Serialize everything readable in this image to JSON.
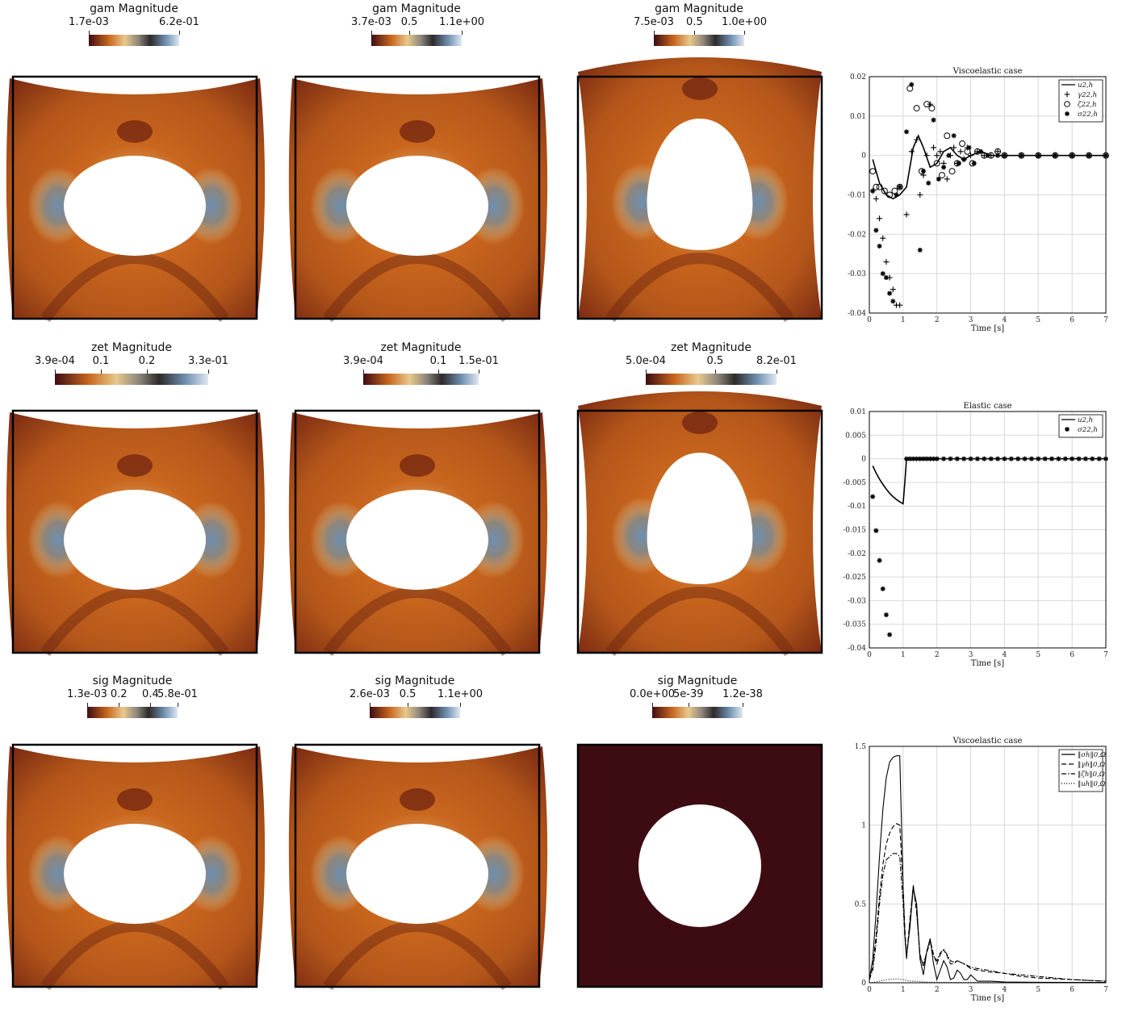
{
  "fields": [
    {
      "title": "gam Magnitude",
      "ticks": [
        "1.7e-03",
        "6.2e-01"
      ],
      "shape": "ellipse-wide",
      "deform": "top-sag"
    },
    {
      "title": "gam Magnitude",
      "ticks": [
        "3.7e-03",
        "0.5",
        "1.1e+00"
      ],
      "shape": "ellipse-wide",
      "deform": "top-sag"
    },
    {
      "title": "gam Magnitude",
      "ticks": [
        "7.5e-03",
        "0.5",
        "1.0e+00"
      ],
      "shape": "egg-tall",
      "deform": "top-bulge"
    },
    {
      "title": "zet Magnitude",
      "ticks": [
        "3.9e-04",
        "0.1",
        "0.2",
        "3.3e-01"
      ],
      "shape": "ellipse-wide",
      "deform": "top-sag"
    },
    {
      "title": "zet Magnitude",
      "ticks": [
        "3.9e-04",
        "0.1",
        "1.5e-01"
      ],
      "shape": "ellipse-wide",
      "deform": "top-sag"
    },
    {
      "title": "zet Magnitude",
      "ticks": [
        "5.0e-04",
        "0.5",
        "8.2e-01"
      ],
      "shape": "egg-tall",
      "deform": "top-bulge"
    },
    {
      "title": "sig Magnitude",
      "ticks": [
        "1.3e-03",
        "0.2",
        "0.4",
        "5.8e-01"
      ],
      "shape": "ellipse-wide",
      "deform": "top-sag"
    },
    {
      "title": "sig Magnitude",
      "ticks": [
        "2.6e-03",
        "0.5",
        "1.1e+00"
      ],
      "shape": "ellipse-wide",
      "deform": "top-sag"
    },
    {
      "title": "sig Magnitude",
      "ticks": [
        "0.0e+00",
        "5e-39",
        "1.2e-38"
      ],
      "shape": "circle",
      "deform": "none"
    }
  ],
  "colors": {
    "dark": "#3d0c12",
    "orange": "#c9661e",
    "light": "#e8c98c",
    "grey": "#8c857c",
    "blue": "#6e8fb0",
    "pale": "#dfe8f2"
  },
  "chart_data": [
    {
      "type": "scatter",
      "title": "Viscoelastic case",
      "xlabel": "Time [s]",
      "xlim": [
        0,
        7
      ],
      "ylim": [
        -0.04,
        0.02
      ],
      "xticks": [
        "0",
        "1",
        "2",
        "3",
        "4",
        "5",
        "6",
        "7"
      ],
      "yticks": [
        "0.02",
        "0.01",
        "0",
        "-0.01",
        "-0.02",
        "-0.03",
        "-0.04"
      ],
      "grid": true,
      "legend": "top-right",
      "series": [
        {
          "name": "u2,h",
          "style": "line",
          "x": [
            0.1,
            0.3,
            0.5,
            0.7,
            0.9,
            1.1,
            1.3,
            1.45,
            1.6,
            1.8,
            2.0,
            2.2,
            2.4,
            2.6,
            2.8,
            3.0,
            3.3,
            3.6,
            4.0,
            5.0,
            6.0,
            7.0
          ],
          "y": [
            -0.001,
            -0.007,
            -0.01,
            -0.011,
            -0.01,
            -0.008,
            0.002,
            0.005,
            0.002,
            -0.003,
            -0.002,
            0.001,
            0.002,
            0.0,
            -0.001,
            0.0,
            0.001,
            0.0,
            0.0,
            0.0,
            0.0,
            0.0
          ]
        },
        {
          "name": "γ22,h",
          "style": "plus",
          "x": [
            0.1,
            0.2,
            0.3,
            0.4,
            0.5,
            0.6,
            0.7,
            0.8,
            0.9,
            1.1,
            1.25,
            1.4,
            1.5,
            1.6,
            1.7,
            1.8,
            1.9,
            2.0,
            2.1,
            2.2,
            2.3,
            2.4,
            2.5,
            2.6,
            2.7,
            2.8,
            2.9,
            3.0,
            3.2,
            3.4,
            3.6,
            3.8,
            4.0,
            4.5,
            5.0,
            5.5,
            6.0,
            6.5,
            7.0
          ],
          "y": [
            -0.009,
            -0.011,
            -0.016,
            -0.021,
            -0.027,
            -0.031,
            -0.034,
            -0.038,
            -0.038,
            -0.015,
            0.001,
            0.004,
            -0.01,
            -0.005,
            0.0,
            0.013,
            0.002,
            0.0,
            0.001,
            -0.002,
            -0.006,
            0.0,
            0.002,
            -0.002,
            0.001,
            -0.001,
            0.002,
            0.0,
            0.001,
            0.0,
            0.0,
            0.001,
            0.0,
            0.0,
            0.0,
            0.0,
            0.0,
            0.0,
            0.0
          ]
        },
        {
          "name": "ζ22,h",
          "style": "circle",
          "x": [
            0.1,
            0.2,
            0.3,
            0.45,
            0.6,
            0.75,
            0.9,
            1.2,
            1.4,
            1.55,
            1.7,
            1.85,
            2.0,
            2.15,
            2.3,
            2.45,
            2.6,
            2.75,
            2.9,
            3.05,
            3.2,
            3.4,
            3.6,
            3.8,
            4.0,
            4.5,
            5.0,
            5.5,
            6.0,
            6.5,
            7.0
          ],
          "y": [
            -0.004,
            -0.008,
            -0.008,
            -0.009,
            -0.01,
            -0.009,
            -0.008,
            0.017,
            0.012,
            -0.004,
            0.013,
            0.012,
            -0.002,
            -0.005,
            0.005,
            -0.004,
            -0.002,
            0.003,
            0.001,
            -0.002,
            0.001,
            0.0,
            0.0,
            0.001,
            0.0,
            0.0,
            0.0,
            0.0,
            0.0,
            0.0,
            0.0
          ]
        },
        {
          "name": "σ22,h",
          "style": "star",
          "x": [
            0.1,
            0.2,
            0.3,
            0.4,
            0.5,
            0.6,
            0.7,
            0.8,
            0.9,
            1.1,
            1.25,
            1.5,
            1.6,
            1.75,
            1.9,
            2.05,
            2.2,
            2.35,
            2.5,
            2.65,
            2.8,
            2.95,
            3.1,
            3.3,
            3.5,
            3.8,
            4.0,
            4.5,
            5.0,
            5.5,
            6.0,
            6.5,
            7.0
          ],
          "y": [
            -0.009,
            -0.019,
            -0.023,
            -0.03,
            -0.031,
            -0.035,
            -0.037,
            -0.01,
            -0.008,
            0.006,
            0.018,
            -0.024,
            -0.004,
            -0.007,
            0.009,
            -0.006,
            -0.003,
            0.0,
            0.005,
            -0.002,
            -0.001,
            0.002,
            -0.002,
            0.001,
            0.0,
            0.0,
            0.0,
            0.0,
            0.0,
            0.0,
            0.0,
            0.0,
            0.0
          ]
        }
      ]
    },
    {
      "type": "scatter",
      "title": "Elastic case",
      "xlabel": "Time [s]",
      "xlim": [
        0,
        7
      ],
      "ylim": [
        -0.04,
        0.01
      ],
      "xticks": [
        "0",
        "1",
        "2",
        "3",
        "4",
        "5",
        "6",
        "7"
      ],
      "yticks": [
        "0.01",
        "0.005",
        "0",
        "-0.005",
        "-0.01",
        "-0.015",
        "-0.02",
        "-0.025",
        "-0.03",
        "-0.035",
        "-0.04"
      ],
      "grid": true,
      "legend": "top-right",
      "series": [
        {
          "name": "u2,h",
          "style": "line",
          "x": [
            0.1,
            0.2,
            0.3,
            0.4,
            0.5,
            0.6,
            0.7,
            0.8,
            0.9,
            1.0,
            1.05,
            1.1,
            2.0,
            3.0,
            4.0,
            5.0,
            6.0,
            7.0
          ],
          "y": [
            -0.0015,
            -0.003,
            -0.0043,
            -0.0054,
            -0.0064,
            -0.0073,
            -0.008,
            -0.0086,
            -0.0091,
            -0.0095,
            -0.005,
            0.0,
            0.0,
            0.0,
            0.0,
            0.0,
            0.0,
            0.0
          ]
        },
        {
          "name": "σ22,h",
          "style": "star",
          "x": [
            0.1,
            0.2,
            0.3,
            0.4,
            0.5,
            0.6,
            1.1,
            1.2,
            1.3,
            1.4,
            1.5,
            1.6,
            1.7,
            1.8,
            1.9,
            2.0,
            2.2,
            2.4,
            2.6,
            2.8,
            3.0,
            3.2,
            3.4,
            3.6,
            3.8,
            4.0,
            4.2,
            4.4,
            4.6,
            4.8,
            5.0,
            5.2,
            5.4,
            5.6,
            5.8,
            6.0,
            6.2,
            6.4,
            6.6,
            6.8,
            7.0
          ],
          "y": [
            -0.008,
            -0.0152,
            -0.0215,
            -0.0275,
            -0.033,
            -0.0372,
            0,
            0,
            0,
            0,
            0,
            0,
            0,
            0,
            0,
            0,
            0,
            0,
            0,
            0,
            0,
            0,
            0,
            0,
            0,
            0,
            0,
            0,
            0,
            0,
            0,
            0,
            0,
            0,
            0,
            0,
            0,
            0,
            0,
            0,
            0
          ]
        }
      ]
    },
    {
      "type": "line",
      "title": "Viscoelastic case",
      "xlabel": "Time [s]",
      "xlim": [
        0,
        7
      ],
      "ylim": [
        0,
        1.5
      ],
      "xticks": [
        "0",
        "1",
        "2",
        "3",
        "4",
        "5",
        "6",
        "7"
      ],
      "yticks": [
        "1.5",
        "1",
        "0.5",
        "0"
      ],
      "grid": true,
      "legend": "top-right",
      "series": [
        {
          "name": "‖σh‖0,Ω",
          "style": "solid",
          "x": [
            0,
            0.1,
            0.2,
            0.3,
            0.4,
            0.5,
            0.6,
            0.7,
            0.8,
            0.9,
            1.0,
            1.05,
            1.1,
            1.2,
            1.3,
            1.4,
            1.5,
            1.6,
            1.7,
            1.8,
            1.9,
            2.0,
            2.1,
            2.2,
            2.3,
            2.4,
            2.5,
            2.6,
            2.7,
            2.8,
            2.9,
            3.0,
            3.1,
            3.2,
            3.4,
            3.6,
            4.0,
            5.0,
            6.0,
            7.0
          ],
          "y": [
            0.02,
            0.15,
            0.45,
            0.8,
            1.1,
            1.3,
            1.4,
            1.43,
            1.44,
            1.44,
            0.6,
            0.3,
            0.17,
            0.35,
            0.6,
            0.5,
            0.15,
            0.05,
            0.2,
            0.28,
            0.12,
            0.02,
            0.08,
            0.14,
            0.1,
            0.02,
            0.03,
            0.08,
            0.06,
            0.02,
            0.02,
            0.05,
            0.03,
            0.01,
            0.01,
            0.01,
            0.005,
            0.003,
            0.002,
            0.002
          ]
        },
        {
          "name": "‖γh‖0,Ω",
          "style": "dashed",
          "x": [
            0,
            0.1,
            0.2,
            0.3,
            0.4,
            0.5,
            0.6,
            0.7,
            0.8,
            0.9,
            1.0,
            1.05,
            1.1,
            1.2,
            1.3,
            1.4,
            1.5,
            1.6,
            1.7,
            1.8,
            1.9,
            2.0,
            2.1,
            2.2,
            2.3,
            2.4,
            2.5,
            2.6,
            2.8,
            3.0,
            3.2,
            3.5,
            4.0,
            4.5,
            5.0,
            6.0,
            7.0
          ],
          "y": [
            0.02,
            0.1,
            0.3,
            0.55,
            0.75,
            0.88,
            0.95,
            0.99,
            1.01,
            1.0,
            0.6,
            0.35,
            0.16,
            0.4,
            0.61,
            0.45,
            0.18,
            0.1,
            0.2,
            0.27,
            0.18,
            0.12,
            0.18,
            0.21,
            0.17,
            0.12,
            0.12,
            0.14,
            0.12,
            0.09,
            0.08,
            0.07,
            0.06,
            0.04,
            0.03,
            0.02,
            0.01
          ]
        },
        {
          "name": "‖ζh‖0,Ω",
          "style": "dashdot",
          "x": [
            0,
            0.1,
            0.2,
            0.3,
            0.4,
            0.5,
            0.6,
            0.7,
            0.8,
            0.9,
            1.0,
            1.05,
            1.1,
            1.2,
            1.3,
            1.4,
            1.5,
            1.6,
            1.7,
            1.8,
            1.9,
            2.0,
            2.1,
            2.2,
            2.3,
            2.4,
            2.5,
            2.6,
            2.8,
            3.0,
            3.2,
            3.5,
            4.0,
            4.5,
            5.0,
            6.0,
            7.0
          ],
          "y": [
            0.02,
            0.08,
            0.25,
            0.5,
            0.68,
            0.78,
            0.8,
            0.82,
            0.82,
            0.8,
            0.5,
            0.3,
            0.15,
            0.38,
            0.62,
            0.45,
            0.16,
            0.12,
            0.19,
            0.26,
            0.17,
            0.14,
            0.19,
            0.21,
            0.18,
            0.14,
            0.13,
            0.14,
            0.12,
            0.1,
            0.09,
            0.08,
            0.06,
            0.05,
            0.04,
            0.02,
            0.01
          ]
        },
        {
          "name": "‖uh‖0,Ω",
          "style": "dotted",
          "x": [
            0,
            0.2,
            0.4,
            0.6,
            0.8,
            1.0,
            1.2,
            1.4,
            1.6,
            2.0,
            3.0,
            4.0,
            5.0,
            6.0,
            7.0
          ],
          "y": [
            0.0,
            0.005,
            0.015,
            0.022,
            0.025,
            0.02,
            0.01,
            0.01,
            0.005,
            0.003,
            0.002,
            0.001,
            0.001,
            0.0,
            0.0
          ]
        }
      ]
    }
  ]
}
